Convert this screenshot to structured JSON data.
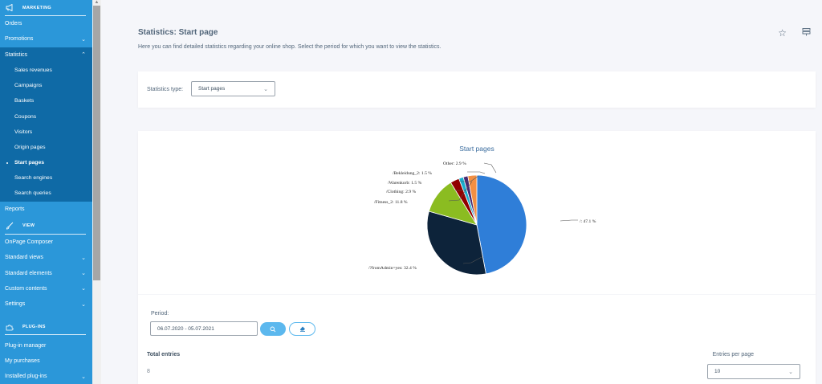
{
  "sidebar": {
    "sections": [
      {
        "label": "MARKETING",
        "icon": "megaphone-icon"
      },
      {
        "label": "VIEW",
        "icon": "brush-icon"
      },
      {
        "label": "PLUG-INS",
        "icon": "puzzle-icon"
      }
    ],
    "marketing_items": [
      {
        "label": "Orders",
        "chevron": ""
      },
      {
        "label": "Promotions",
        "chevron": "⌄"
      },
      {
        "label": "Statistics",
        "chevron": "⌃"
      }
    ],
    "statistics_sub": [
      {
        "label": "Sales revenues"
      },
      {
        "label": "Campaigns"
      },
      {
        "label": "Baskets"
      },
      {
        "label": "Coupons"
      },
      {
        "label": "Visitors"
      },
      {
        "label": "Origin pages"
      },
      {
        "label": "Start pages",
        "active": true
      },
      {
        "label": "Search engines"
      },
      {
        "label": "Search queries"
      }
    ],
    "reports_label": "Reports",
    "view_items": [
      {
        "label": "OnPage Composer",
        "chevron": ""
      },
      {
        "label": "Standard views",
        "chevron": "⌄"
      },
      {
        "label": "Standard elements",
        "chevron": "⌄"
      },
      {
        "label": "Custom contents",
        "chevron": "⌄"
      },
      {
        "label": "Settings",
        "chevron": "⌄"
      }
    ],
    "plugin_items": [
      {
        "label": "Plug-in manager",
        "chevron": ""
      },
      {
        "label": "My purchases",
        "chevron": ""
      },
      {
        "label": "Installed plug-ins",
        "chevron": "⌄"
      }
    ]
  },
  "header": {
    "title": "Statistics: Start page",
    "description": "Here you can find detailed statistics regarding your online shop. Select the period for which you want to view the statistics.",
    "favorite_icon": "☆",
    "menu_icon": "☰"
  },
  "filter": {
    "type_label": "Statistics type:",
    "type_value": "Start pages",
    "chevron": "⌄"
  },
  "chart_data": {
    "type": "pie",
    "title": "Start pages",
    "categories": [
      "/",
      "/?fromAdmin=yes",
      "/Fitness_2",
      "/Clothing",
      "/Warenkorb",
      "/Bekleidung_2",
      "Other"
    ],
    "values": [
      47.1,
      32.4,
      11.8,
      2.9,
      1.5,
      1.5,
      2.9
    ],
    "colors": [
      "#2f7ed8",
      "#0d233a",
      "#8bbc21",
      "#910000",
      "#1aadce",
      "#492970",
      "#f28f43"
    ],
    "labels": [
      "/: 47.1 %",
      "/?fromAdmin=yes: 32.4 %",
      "/Fitness_2: 11.8 %",
      "/Clothing: 2.9 %",
      "/Warenkorb: 1.5 %",
      "/Bekleidung_2: 1.5 %",
      "Other: 2.9 %"
    ],
    "legend": "none (data labels with connectors)"
  },
  "period": {
    "label": "Period:",
    "value": "06.07.2020 - 05.07.2021",
    "search_icon": "⌕",
    "reset_icon": "⌫"
  },
  "totals": {
    "label": "Total entries",
    "value": "8"
  },
  "pagination": {
    "entries_label": "Entries per page",
    "entries_value": "10",
    "chevron": "⌄"
  }
}
